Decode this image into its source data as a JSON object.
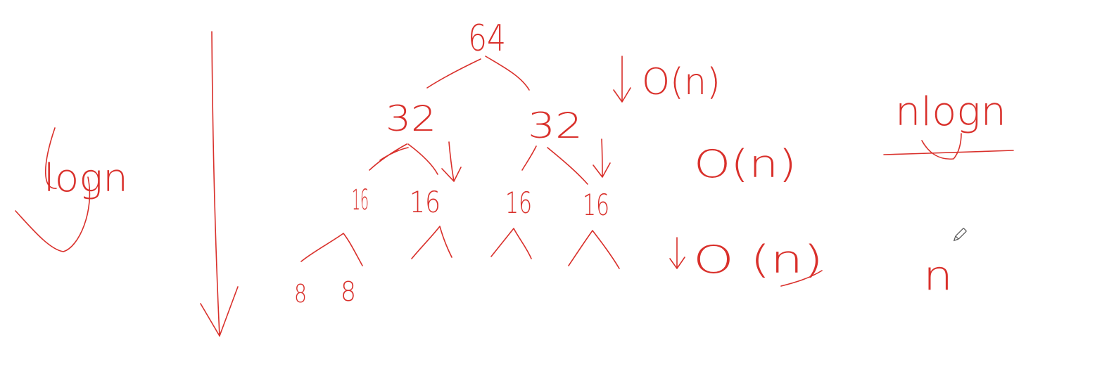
{
  "colors": {
    "ink": "#d9302b",
    "background": "#ffffff",
    "pen_cursor": "#555555"
  },
  "labels": {
    "depth": "logn",
    "root": "64",
    "level1_left": "32",
    "level1_right": "32",
    "level2_a": "16",
    "level2_b": "16",
    "level2_c": "16",
    "level2_d": "16",
    "level3_a": "8",
    "level3_b": "8",
    "cost_level1": "O(n)",
    "cost_level2": "O(n)",
    "cost_level3": "O (n)",
    "total_numerator": "nlogn",
    "total_denominator": "n"
  },
  "icons": {
    "cursor": "pencil-cursor-icon"
  }
}
